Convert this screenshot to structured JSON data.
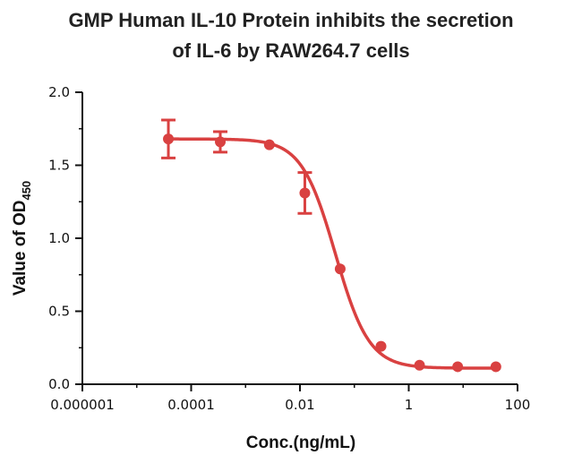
{
  "chart_data": {
    "type": "scatter",
    "title": [
      "GMP Human IL-10 Protein inhibits the secretion",
      "of IL-6 by RAW264.7  cells"
    ],
    "xlabel": "Conc.(ng/mL)",
    "ylabel": {
      "main": "Value of OD",
      "subscript": "450"
    },
    "x_scale": "log",
    "xlim": [
      1e-06,
      100
    ],
    "ylim": [
      0,
      2.0
    ],
    "x_ticks": [
      1e-06,
      0.0001,
      0.01,
      1,
      100
    ],
    "x_tick_labels": [
      "0.000001",
      "0.0001",
      "0.01",
      "1",
      "100"
    ],
    "y_ticks": [
      0,
      0.5,
      1.0,
      1.5,
      2.0
    ],
    "y_tick_labels": [
      "0.0",
      "0.5",
      "1.0",
      "1.5",
      "2.0"
    ],
    "grid": false,
    "series": [
      {
        "x": [
          3.81e-05,
          0.000343,
          0.00274,
          0.0123,
          0.0549,
          0.309,
          1.58,
          7.94,
          40.0
        ],
        "y": [
          1.68,
          1.66,
          1.64,
          1.31,
          0.79,
          0.26,
          0.13,
          0.12,
          0.12
        ],
        "error": [
          0.13,
          0.07,
          0,
          0.14,
          0,
          0,
          0,
          0,
          0
        ],
        "color": "#d94141"
      }
    ],
    "fit_curve": {
      "model": "4PL",
      "top": 1.68,
      "bottom": 0.11,
      "ec50": 0.0447,
      "hill": 1.4,
      "color": "#d94141"
    }
  }
}
